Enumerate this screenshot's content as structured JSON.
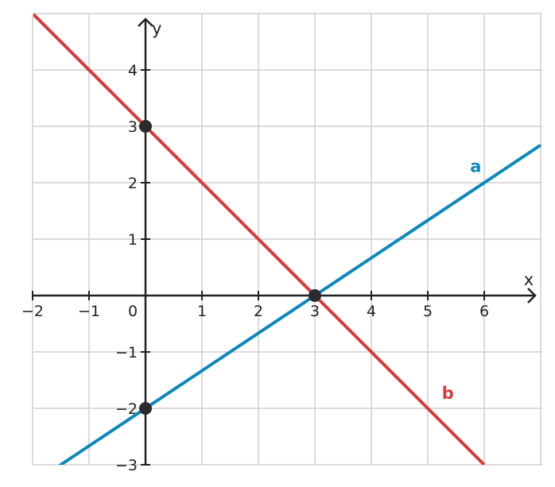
{
  "chart_data": {
    "type": "line",
    "xlabel": "x",
    "ylabel": "y",
    "xlim": [
      -2,
      7
    ],
    "ylim": [
      -3,
      5
    ],
    "grid": true,
    "x_ticks": [
      "−2",
      "−1",
      "0",
      "1",
      "2",
      "3",
      "4",
      "5",
      "6"
    ],
    "x_tick_values": [
      -2,
      -1,
      0,
      1,
      2,
      3,
      4,
      5,
      6
    ],
    "y_ticks": [
      "−3",
      "−2",
      "−1",
      "1",
      "2",
      "3",
      "4"
    ],
    "y_tick_values": [
      -3,
      -2,
      -1,
      1,
      2,
      3,
      4
    ],
    "series": [
      {
        "name": "a",
        "color": "#0e88bb",
        "x": [
          -2,
          7
        ],
        "y": [
          -3.333,
          2.667
        ],
        "label_at": [
          5.75,
          2.3
        ]
      },
      {
        "name": "b",
        "color": "#d43c3a",
        "x": [
          -2,
          6
        ],
        "y": [
          5,
          -3
        ],
        "label_at": [
          5.25,
          -1.72
        ]
      }
    ],
    "points": [
      {
        "x": 0,
        "y": 3
      },
      {
        "x": 3,
        "y": 0
      },
      {
        "x": 0,
        "y": -2
      }
    ]
  }
}
